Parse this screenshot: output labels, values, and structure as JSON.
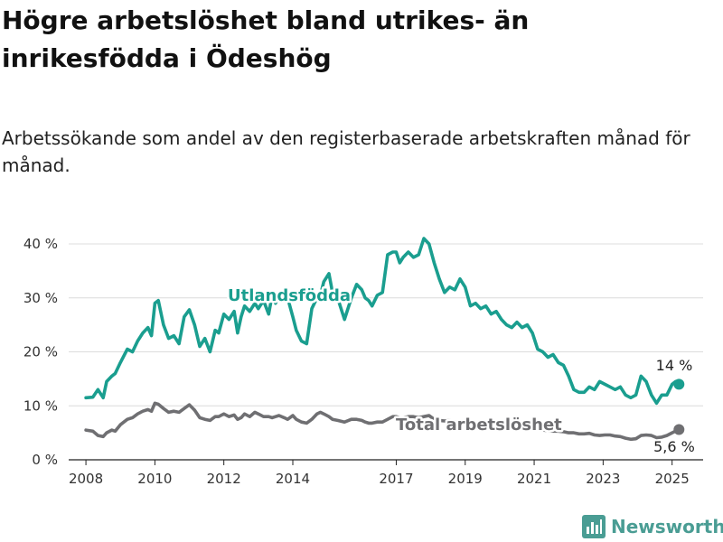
{
  "title": "Högre arbetslöshet bland utrikes- än inrikesfödda i Ödeshög",
  "subtitle": "Arbetssökande som andel av den registerbaserade arbetskraften månad för månad.",
  "brand": "Newsworthy",
  "colors": {
    "foreign": "#1a9e8f",
    "total": "#6f6f72",
    "grid": "#dcdcdc"
  },
  "chart_data": {
    "type": "line",
    "title": "Högre arbetslöshet bland utrikes- än inrikesfödda i Ödeshög",
    "xlabel": "",
    "ylabel": "",
    "xlim": [
      2007.5,
      2025.9
    ],
    "ylim": [
      0,
      40
    ],
    "yticks": [
      0,
      10,
      20,
      30,
      40
    ],
    "ytick_labels": [
      "0 %",
      "10 %",
      "20 %",
      "30 %",
      "40 %"
    ],
    "xticks": [
      2008,
      2010,
      2012,
      2014,
      2017,
      2019,
      2021,
      2023,
      2025
    ],
    "xtick_labels": [
      "2008",
      "2010",
      "2012",
      "2014",
      "2017",
      "2019",
      "2021",
      "2023",
      "2025"
    ],
    "grid": "horizontal",
    "series": [
      {
        "name": "Utlandsfödda",
        "end_label": "14 %",
        "x": [
          2008.0,
          2008.2,
          2008.35,
          2008.5,
          2008.6,
          2008.75,
          2008.85,
          2009.0,
          2009.2,
          2009.35,
          2009.5,
          2009.65,
          2009.8,
          2009.9,
          2010.0,
          2010.1,
          2010.25,
          2010.4,
          2010.55,
          2010.7,
          2010.85,
          2011.0,
          2011.15,
          2011.3,
          2011.45,
          2011.6,
          2011.75,
          2011.85,
          2012.0,
          2012.15,
          2012.3,
          2012.4,
          2012.5,
          2012.6,
          2012.75,
          2012.9,
          2013.0,
          2013.15,
          2013.3,
          2013.4,
          2013.5,
          2013.6,
          2013.75,
          2013.85,
          2014.0,
          2014.1,
          2014.25,
          2014.4,
          2014.55,
          2014.7,
          2014.8,
          2014.9,
          2015.05,
          2015.15,
          2015.3,
          2015.5,
          2015.7,
          2015.85,
          2016.0,
          2016.1,
          2016.2,
          2016.3,
          2016.45,
          2016.6,
          2016.75,
          2016.9,
          2017.0,
          2017.1,
          2017.2,
          2017.35,
          2017.5,
          2017.65,
          2017.8,
          2017.95,
          2018.1,
          2018.25,
          2018.4,
          2018.55,
          2018.7,
          2018.85,
          2019.0,
          2019.15,
          2019.3,
          2019.45,
          2019.6,
          2019.75,
          2019.9,
          2020.05,
          2020.2,
          2020.35,
          2020.5,
          2020.65,
          2020.8,
          2020.95,
          2021.1,
          2021.25,
          2021.4,
          2021.55,
          2021.7,
          2021.85,
          2022.0,
          2022.15,
          2022.3,
          2022.45,
          2022.6,
          2022.75,
          2022.9,
          2023.05,
          2023.2,
          2023.35,
          2023.5,
          2023.65,
          2023.8,
          2023.95,
          2024.1,
          2024.25,
          2024.4,
          2024.55,
          2024.7,
          2024.85,
          2025.0,
          2025.1,
          2025.2
        ],
        "values": [
          11.5,
          11.6,
          13.0,
          11.5,
          14.5,
          15.5,
          16.0,
          18.0,
          20.5,
          20.0,
          22.0,
          23.5,
          24.5,
          23.0,
          29.0,
          29.5,
          25.0,
          22.5,
          23.0,
          21.5,
          26.5,
          27.8,
          25.0,
          21.0,
          22.5,
          20.0,
          24.0,
          23.5,
          27.0,
          26.0,
          27.5,
          23.5,
          26.5,
          28.5,
          27.5,
          29.0,
          28.0,
          29.5,
          27.0,
          30.5,
          29.0,
          31.0,
          30.5,
          30.0,
          26.5,
          24.0,
          22.0,
          21.5,
          28.0,
          30.0,
          30.5,
          33.0,
          34.5,
          31.0,
          30.0,
          26.0,
          30.0,
          32.5,
          31.5,
          30.0,
          29.5,
          28.5,
          30.5,
          31.0,
          38.0,
          38.5,
          38.5,
          36.5,
          37.5,
          38.5,
          37.5,
          38.0,
          41.0,
          40.0,
          36.5,
          33.5,
          31.0,
          32.0,
          31.5,
          33.5,
          32.0,
          28.5,
          29.0,
          28.0,
          28.5,
          27.0,
          27.5,
          26.0,
          25.0,
          24.5,
          25.5,
          24.5,
          25.0,
          23.5,
          20.5,
          20.0,
          19.0,
          19.5,
          18.0,
          17.5,
          15.5,
          13.0,
          12.5,
          12.5,
          13.5,
          13.0,
          14.5,
          14.0,
          13.5,
          13.0,
          13.5,
          12.0,
          11.5,
          12.0,
          15.5,
          14.5,
          12.0,
          10.5,
          12.0,
          12.0,
          14.0,
          14.5,
          14.0
        ]
      },
      {
        "name": "Total arbetslöshet",
        "end_label": "5,6 %",
        "x": [
          2008.0,
          2008.2,
          2008.35,
          2008.5,
          2008.6,
          2008.75,
          2008.85,
          2009.0,
          2009.2,
          2009.35,
          2009.5,
          2009.65,
          2009.8,
          2009.9,
          2010.0,
          2010.1,
          2010.25,
          2010.4,
          2010.55,
          2010.7,
          2010.85,
          2011.0,
          2011.15,
          2011.3,
          2011.45,
          2011.6,
          2011.75,
          2011.85,
          2012.0,
          2012.15,
          2012.3,
          2012.4,
          2012.5,
          2012.6,
          2012.75,
          2012.9,
          2013.0,
          2013.15,
          2013.3,
          2013.4,
          2013.5,
          2013.6,
          2013.75,
          2013.85,
          2014.0,
          2014.1,
          2014.25,
          2014.4,
          2014.55,
          2014.7,
          2014.8,
          2014.9,
          2015.05,
          2015.15,
          2015.3,
          2015.5,
          2015.7,
          2015.85,
          2016.0,
          2016.1,
          2016.2,
          2016.3,
          2016.45,
          2016.6,
          2016.75,
          2016.9,
          2017.0,
          2017.1,
          2017.2,
          2017.35,
          2017.5,
          2017.65,
          2017.8,
          2017.95,
          2018.1,
          2018.25,
          2018.4,
          2018.55,
          2018.7,
          2018.85,
          2019.0,
          2019.15,
          2019.3,
          2019.45,
          2019.6,
          2019.75,
          2019.9,
          2020.05,
          2020.2,
          2020.35,
          2020.5,
          2020.65,
          2020.8,
          2020.95,
          2021.1,
          2021.25,
          2021.4,
          2021.55,
          2021.7,
          2021.85,
          2022.0,
          2022.15,
          2022.3,
          2022.45,
          2022.6,
          2022.75,
          2022.9,
          2023.05,
          2023.2,
          2023.35,
          2023.5,
          2023.65,
          2023.8,
          2023.95,
          2024.1,
          2024.25,
          2024.4,
          2024.55,
          2024.7,
          2024.85,
          2025.0,
          2025.1,
          2025.2
        ],
        "values": [
          5.5,
          5.3,
          4.5,
          4.3,
          5.0,
          5.5,
          5.3,
          6.5,
          7.5,
          7.8,
          8.5,
          9.0,
          9.3,
          9.0,
          10.5,
          10.3,
          9.5,
          8.8,
          9.0,
          8.8,
          9.5,
          10.2,
          9.2,
          7.8,
          7.5,
          7.3,
          8.0,
          8.0,
          8.5,
          8.0,
          8.3,
          7.5,
          7.8,
          8.5,
          8.0,
          8.8,
          8.5,
          8.0,
          8.0,
          7.8,
          8.0,
          8.2,
          7.8,
          7.5,
          8.2,
          7.5,
          7.0,
          6.8,
          7.5,
          8.5,
          8.8,
          8.5,
          8.0,
          7.5,
          7.3,
          7.0,
          7.5,
          7.5,
          7.3,
          7.0,
          6.8,
          6.8,
          7.0,
          7.0,
          7.5,
          8.0,
          8.0,
          7.8,
          7.8,
          8.0,
          8.0,
          7.8,
          8.0,
          8.2,
          7.5,
          7.3,
          7.2,
          7.3,
          7.0,
          7.2,
          7.0,
          6.8,
          6.8,
          6.7,
          6.8,
          6.5,
          6.7,
          6.4,
          6.3,
          6.2,
          6.3,
          6.0,
          6.0,
          5.8,
          5.6,
          5.5,
          5.4,
          5.3,
          5.3,
          5.2,
          5.0,
          5.0,
          4.8,
          4.8,
          4.9,
          4.6,
          4.5,
          4.6,
          4.6,
          4.4,
          4.3,
          4.0,
          3.8,
          3.9,
          4.5,
          4.6,
          4.5,
          4.1,
          4.2,
          4.5,
          5.0,
          5.3,
          5.6
        ]
      }
    ]
  }
}
